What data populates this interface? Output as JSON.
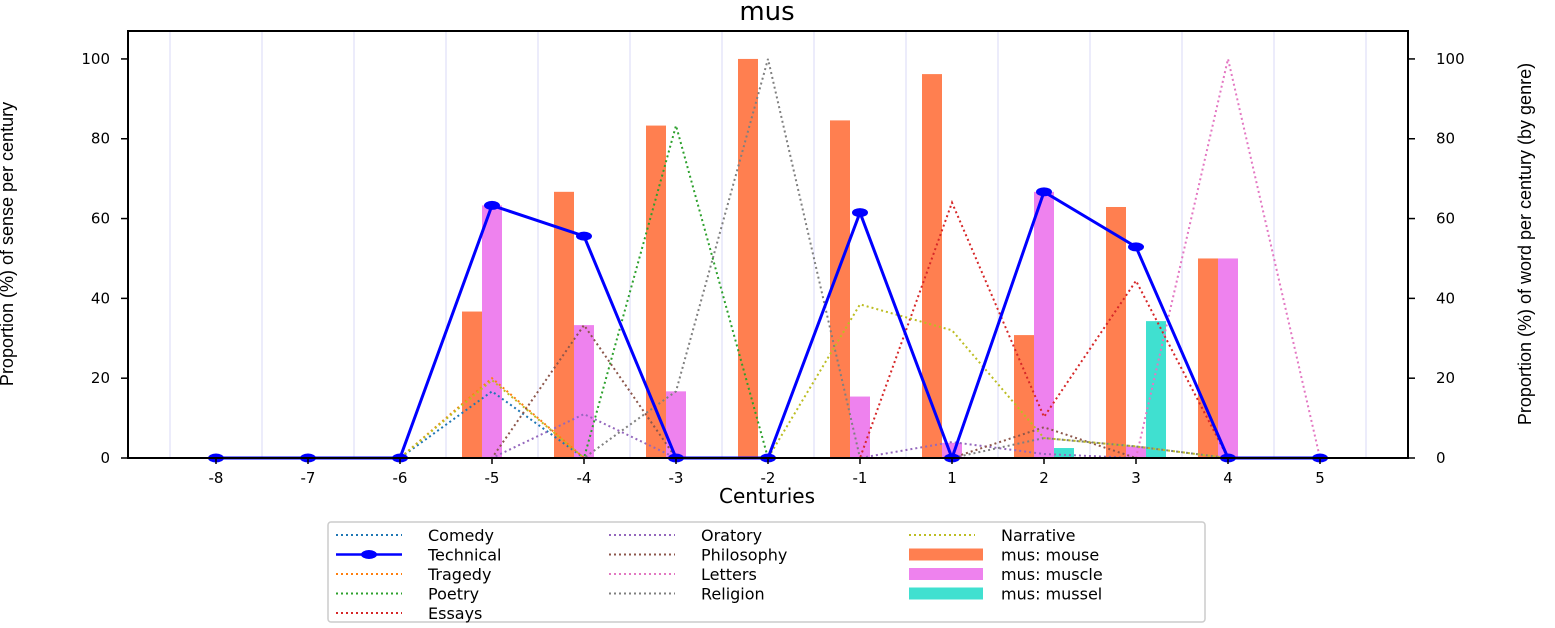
{
  "chart_data": {
    "type": "bar",
    "title": "mus",
    "xlabel": "Centuries",
    "ylabel_left": "Proportion (%) of sense per century",
    "ylabel_right": "Proportion (%) of word per century (by genre)",
    "x": [
      -8,
      -7,
      -6,
      -5,
      -4,
      -3,
      -2,
      -1,
      1,
      2,
      3,
      4,
      5
    ],
    "x_tick_labels": [
      "-8",
      "-7",
      "-6",
      "-5",
      "-4",
      "-3",
      "-2",
      "-1",
      "1",
      "2",
      "3",
      "4",
      "5"
    ],
    "ylim": [
      0,
      107
    ],
    "y_ticks": [
      0,
      20,
      40,
      60,
      80,
      100
    ],
    "y_tick_labels": [
      "0",
      "20",
      "40",
      "60",
      "80",
      "100"
    ],
    "grid": "vertical",
    "legend_position": "bottom",
    "bar_series": [
      {
        "name": "mus: mouse",
        "color": "#ff7f50",
        "values": [
          0,
          0,
          0,
          36.7,
          66.7,
          83.3,
          100,
          84.6,
          96.2,
          30.8,
          62.9,
          50,
          0
        ]
      },
      {
        "name": "mus: muscle",
        "color": "#ee82ee",
        "values": [
          0,
          0,
          0,
          63.3,
          33.3,
          16.7,
          0,
          15.4,
          3.8,
          66.7,
          2.9,
          50,
          0
        ]
      },
      {
        "name": "mus: mussel",
        "color": "#40e0d0",
        "values": [
          0,
          0,
          0,
          0,
          0,
          0,
          0,
          0,
          0,
          2.5,
          34.3,
          0,
          0
        ]
      }
    ],
    "line_series": [
      {
        "name": "Comedy",
        "color": "#1f77b4",
        "style": "dotted",
        "values": [
          0,
          0,
          0,
          16.7,
          0,
          0,
          0,
          0,
          0,
          0,
          0,
          0,
          0
        ]
      },
      {
        "name": "Technical",
        "color": "#0000ff",
        "style": "solid-marker",
        "values": [
          0,
          0,
          0,
          63.3,
          55.6,
          0,
          0,
          61.5,
          0,
          66.7,
          52.9,
          0,
          0
        ]
      },
      {
        "name": "Tragedy",
        "color": "#ff7f0e",
        "style": "dotted",
        "values": [
          0,
          0,
          0,
          20,
          0,
          0,
          0,
          0,
          0,
          0,
          0,
          0,
          0
        ]
      },
      {
        "name": "Poetry",
        "color": "#2ca02c",
        "style": "dotted",
        "values": [
          0,
          0,
          0,
          0,
          0,
          83.3,
          0,
          0,
          0,
          0,
          0,
          0,
          0
        ]
      },
      {
        "name": "Essays",
        "color": "#d62728",
        "style": "dotted",
        "values": [
          0,
          0,
          0,
          0,
          0,
          0,
          0,
          0,
          64,
          10.3,
          44.4,
          0,
          0
        ]
      },
      {
        "name": "Oratory",
        "color": "#9467bd",
        "style": "dotted",
        "values": [
          0,
          0,
          0,
          0,
          11,
          0,
          0,
          0,
          4,
          1,
          0,
          0,
          0
        ]
      },
      {
        "name": "Philosophy",
        "color": "#8c564b",
        "style": "dotted",
        "values": [
          0,
          0,
          0,
          0,
          33.3,
          0,
          0,
          0,
          0,
          7.7,
          0,
          0,
          0
        ]
      },
      {
        "name": "Letters",
        "color": "#e377c2",
        "style": "dotted",
        "values": [
          0,
          0,
          0,
          0,
          0,
          0,
          0,
          0,
          0,
          0,
          0,
          100,
          0
        ]
      },
      {
        "name": "Religion",
        "color": "#7f7f7f",
        "style": "dotted",
        "values": [
          0,
          0,
          0,
          0,
          0,
          16.7,
          100,
          0,
          0,
          5,
          2.9,
          0,
          0
        ]
      },
      {
        "name": "Narrative",
        "color": "#bcbd22",
        "style": "dotted",
        "values": [
          0,
          0,
          0,
          19.5,
          0,
          0,
          0,
          38.5,
          32,
          5,
          2.9,
          0,
          0
        ]
      }
    ],
    "legend_columns": [
      [
        "Comedy",
        "Technical",
        "Tragedy",
        "Poetry",
        "Essays"
      ],
      [
        "Oratory",
        "Philosophy",
        "Letters",
        "Religion"
      ],
      [
        "Narrative",
        "mus: mouse",
        "mus: muscle",
        "mus: mussel"
      ]
    ]
  }
}
